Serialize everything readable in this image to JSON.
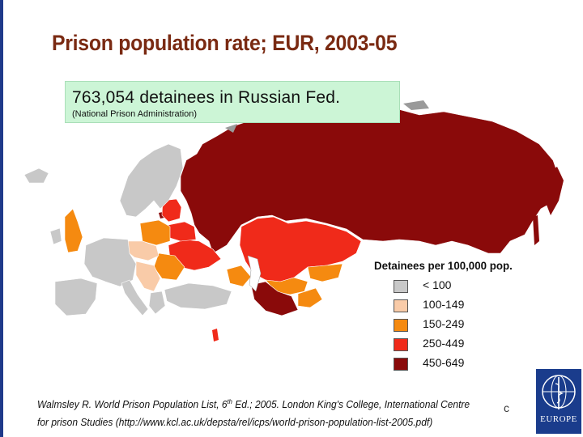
{
  "title": "Prison population rate; EUR, 2003-05",
  "callout": {
    "main": "763,054 detainees in Russian Fed.",
    "source": "(National Prison Administration)"
  },
  "legend": {
    "title": "Detainees per 100,000 pop.",
    "items": [
      {
        "label": "< 100",
        "color": "#c8c8c8"
      },
      {
        "label": "100-149",
        "color": "#f9cba8"
      },
      {
        "label": "150-249",
        "color": "#f58a10"
      },
      {
        "label": "250-449",
        "color": "#f02a1a"
      },
      {
        "label": "450-649",
        "color": "#8a0a0a"
      }
    ]
  },
  "citation": {
    "line1_a": "Walmsley R.  World Prison Population List, 6",
    "line1_sup": "th",
    "line1_b": " Ed.; 2005. London King's College, International Centre",
    "line2": "for prison Studies (http://www.kcl.ac.uk/depsta/rel/icps/world-prison-population-list-2005.pdf)"
  },
  "page_marker": "c",
  "logo": {
    "text": "EUROPE"
  },
  "colors": {
    "title": "#7a2a12",
    "callout_bg": "#ccf5d6",
    "logo_bg": "#1a3c8c",
    "sea": "#ffffff"
  }
}
